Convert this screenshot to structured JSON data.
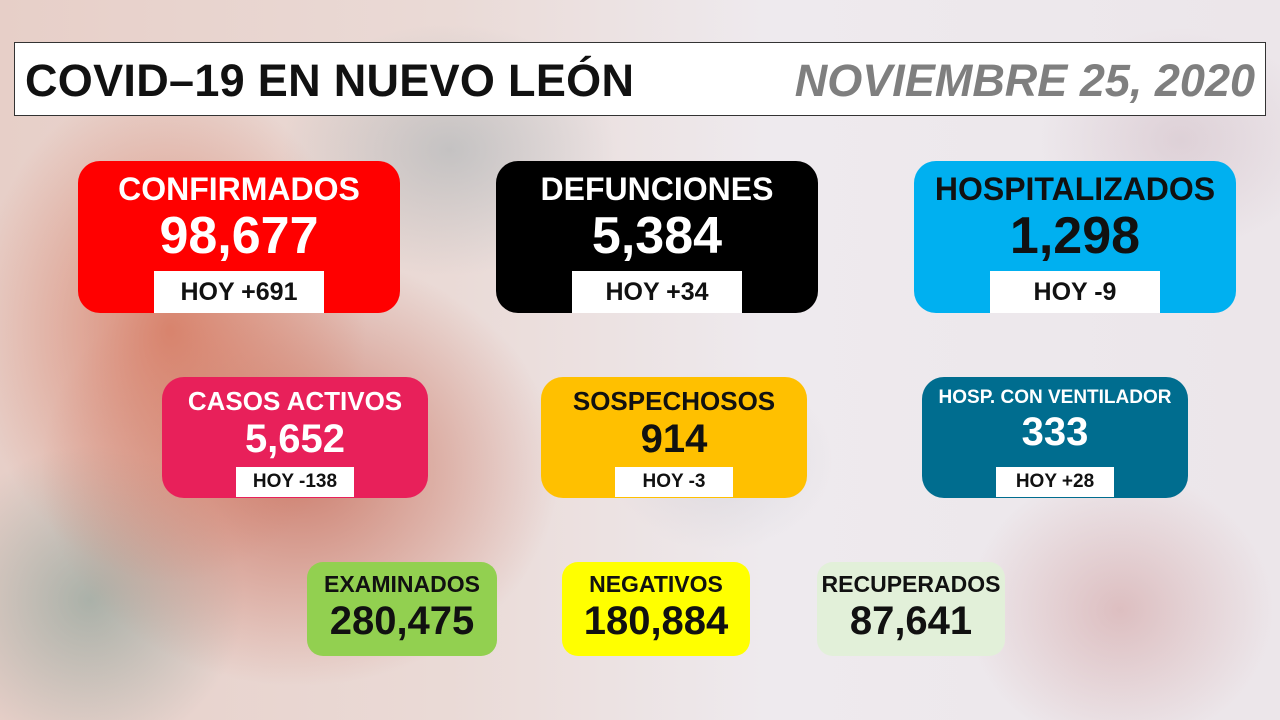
{
  "header": {
    "title": "COVID–19 EN NUEVO LEÓN",
    "date": "NOVIEMBRE 25, 2020"
  },
  "cards": {
    "confirmados": {
      "label": "CONFIRMADOS",
      "value": "98,677",
      "today": "HOY +691",
      "color": "#ff0000"
    },
    "defunciones": {
      "label": "DEFUNCIONES",
      "value": "5,384",
      "today": "HOY +34",
      "color": "#000000"
    },
    "hospitalizados": {
      "label": "HOSPITALIZADOS",
      "value": "1,298",
      "today": "HOY -9",
      "color": "#00b0f0"
    },
    "casos_activos": {
      "label": "CASOS ACTIVOS",
      "value": "5,652",
      "today": "HOY -138",
      "color": "#e8205a"
    },
    "sospechosos": {
      "label": "SOSPECHOSOS",
      "value": "914",
      "today": "HOY -3",
      "color": "#ffc000"
    },
    "ventilador": {
      "label": "HOSP. CON VENTILADOR",
      "value": "333",
      "today": "HOY +28",
      "color": "#006d8f"
    },
    "examinados": {
      "label": "EXAMINADOS",
      "value": "280,475",
      "color": "#92d050"
    },
    "negativos": {
      "label": "NEGATIVOS",
      "value": "180,884",
      "color": "#ffff00"
    },
    "recuperados": {
      "label": "RECUPERADOS",
      "value": "87,641",
      "color": "#e2f0d9"
    }
  }
}
